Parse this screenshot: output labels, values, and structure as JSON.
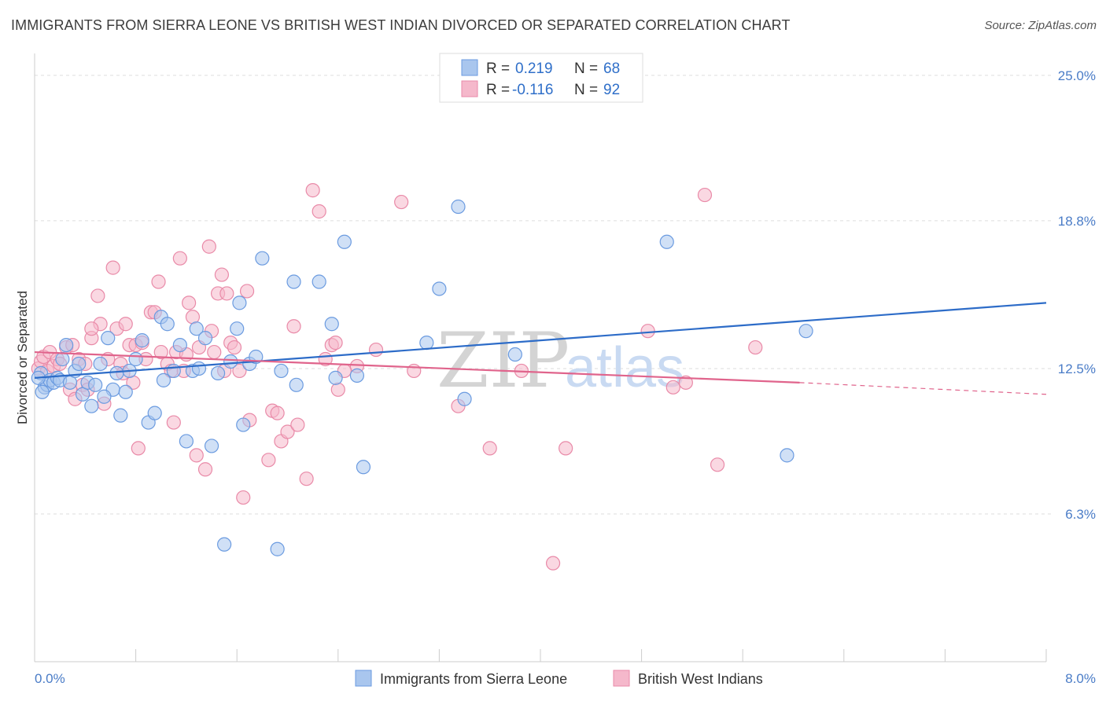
{
  "title": "IMMIGRANTS FROM SIERRA LEONE VS BRITISH WEST INDIAN DIVORCED OR SEPARATED CORRELATION CHART",
  "source": "Source: ZipAtlas.com",
  "watermark": {
    "zip": "ZIP",
    "atlas": "atlas"
  },
  "colors": {
    "blue_fill": "#a9c6ee",
    "blue_stroke": "#6b9be0",
    "blue_line": "#2d6cc8",
    "pink_fill": "#f5b8cb",
    "pink_stroke": "#e98aa8",
    "pink_line": "#e0648c",
    "tick_text": "#4a7cc7",
    "grid": "#dddddd"
  },
  "legend": {
    "rows": [
      {
        "r_label": "R =",
        "r_value": "0.219",
        "n_label": "N =",
        "n_value": "68"
      },
      {
        "r_label": "R =",
        "r_value": "-0.116",
        "n_label": "N =",
        "n_value": "92"
      }
    ]
  },
  "chart_data": {
    "type": "scatter",
    "xlabel": "",
    "ylabel": "Divorced or Separated",
    "xlim": [
      0,
      8
    ],
    "ylim": [
      0,
      25.8
    ],
    "x_tick_labels": [
      "0.0%",
      "8.0%"
    ],
    "y_ticks": [
      {
        "value": 6.3,
        "label": "6.3%"
      },
      {
        "value": 12.5,
        "label": "12.5%"
      },
      {
        "value": 18.8,
        "label": "18.8%"
      },
      {
        "value": 25.0,
        "label": "25.0%"
      }
    ],
    "grid": "horizontal dashed",
    "series": [
      {
        "name": "Immigrants from Sierra Leone",
        "color": "#a9c6ee",
        "trend": {
          "x": [
            0,
            8
          ],
          "y": [
            12.1,
            15.3
          ]
        },
        "points": [
          [
            0.05,
            12.3
          ],
          [
            0.08,
            11.7
          ],
          [
            0.1,
            11.8
          ],
          [
            0.12,
            12.0
          ],
          [
            0.15,
            11.9
          ],
          [
            0.18,
            12.1
          ],
          [
            0.2,
            12.0
          ],
          [
            0.25,
            13.5
          ],
          [
            0.28,
            11.9
          ],
          [
            0.32,
            12.4
          ],
          [
            0.35,
            12.7
          ],
          [
            0.38,
            11.4
          ],
          [
            0.42,
            11.9
          ],
          [
            0.45,
            10.9
          ],
          [
            0.48,
            11.8
          ],
          [
            0.52,
            12.7
          ],
          [
            0.58,
            13.8
          ],
          [
            0.62,
            11.6
          ],
          [
            0.65,
            12.3
          ],
          [
            0.68,
            10.5
          ],
          [
            0.72,
            11.5
          ],
          [
            0.75,
            12.4
          ],
          [
            0.8,
            12.9
          ],
          [
            0.85,
            13.7
          ],
          [
            0.9,
            10.2
          ],
          [
            0.95,
            10.6
          ],
          [
            1.0,
            14.7
          ],
          [
            1.02,
            12.0
          ],
          [
            1.05,
            14.4
          ],
          [
            1.1,
            12.4
          ],
          [
            1.15,
            13.5
          ],
          [
            1.2,
            9.4
          ],
          [
            1.25,
            12.4
          ],
          [
            1.28,
            14.2
          ],
          [
            1.3,
            12.5
          ],
          [
            1.35,
            13.8
          ],
          [
            1.4,
            9.2
          ],
          [
            1.45,
            12.3
          ],
          [
            1.55,
            12.8
          ],
          [
            1.6,
            14.2
          ],
          [
            1.62,
            15.3
          ],
          [
            1.65,
            10.1
          ],
          [
            1.7,
            12.7
          ],
          [
            1.75,
            13.0
          ],
          [
            1.8,
            17.2
          ],
          [
            1.95,
            12.4
          ],
          [
            2.05,
            16.2
          ],
          [
            2.07,
            11.8
          ],
          [
            2.25,
            16.2
          ],
          [
            2.35,
            14.4
          ],
          [
            2.38,
            12.1
          ],
          [
            2.45,
            17.9
          ],
          [
            2.55,
            12.2
          ],
          [
            2.6,
            8.3
          ],
          [
            3.1,
            13.6
          ],
          [
            3.2,
            15.9
          ],
          [
            3.35,
            19.4
          ],
          [
            3.4,
            11.2
          ],
          [
            3.8,
            13.1
          ],
          [
            5.0,
            17.9
          ],
          [
            6.1,
            14.1
          ],
          [
            1.5,
            5.0
          ],
          [
            1.92,
            4.8
          ],
          [
            5.95,
            8.8
          ],
          [
            0.03,
            12.1
          ],
          [
            0.06,
            11.5
          ],
          [
            0.22,
            12.9
          ],
          [
            0.55,
            11.3
          ]
        ]
      },
      {
        "name": "British West Indians",
        "color": "#f5b8cb",
        "trend": {
          "x": [
            0,
            6.05
          ],
          "y": [
            13.2,
            11.9
          ],
          "dash_to": {
            "x": 8,
            "y": 11.4
          }
        },
        "points": [
          [
            0.03,
            12.5
          ],
          [
            0.05,
            12.8
          ],
          [
            0.07,
            13.0
          ],
          [
            0.1,
            12.4
          ],
          [
            0.12,
            13.2
          ],
          [
            0.15,
            12.6
          ],
          [
            0.18,
            12.9
          ],
          [
            0.2,
            12.7
          ],
          [
            0.25,
            13.4
          ],
          [
            0.28,
            11.6
          ],
          [
            0.3,
            13.5
          ],
          [
            0.32,
            11.2
          ],
          [
            0.35,
            12.9
          ],
          [
            0.38,
            11.8
          ],
          [
            0.4,
            12.7
          ],
          [
            0.42,
            11.6
          ],
          [
            0.45,
            13.8
          ],
          [
            0.5,
            15.6
          ],
          [
            0.52,
            14.4
          ],
          [
            0.55,
            11.0
          ],
          [
            0.58,
            12.9
          ],
          [
            0.62,
            16.8
          ],
          [
            0.65,
            14.2
          ],
          [
            0.68,
            12.7
          ],
          [
            0.7,
            12.3
          ],
          [
            0.72,
            14.4
          ],
          [
            0.75,
            13.5
          ],
          [
            0.78,
            11.9
          ],
          [
            0.8,
            13.5
          ],
          [
            0.82,
            9.1
          ],
          [
            0.85,
            13.6
          ],
          [
            0.88,
            12.9
          ],
          [
            0.92,
            14.9
          ],
          [
            0.95,
            14.9
          ],
          [
            0.98,
            16.2
          ],
          [
            1.0,
            13.2
          ],
          [
            1.05,
            12.7
          ],
          [
            1.08,
            12.4
          ],
          [
            1.1,
            10.2
          ],
          [
            1.12,
            13.2
          ],
          [
            1.15,
            17.2
          ],
          [
            1.18,
            12.4
          ],
          [
            1.2,
            13.1
          ],
          [
            1.22,
            15.3
          ],
          [
            1.25,
            14.7
          ],
          [
            1.28,
            8.8
          ],
          [
            1.3,
            13.4
          ],
          [
            1.35,
            8.2
          ],
          [
            1.38,
            17.7
          ],
          [
            1.4,
            14.1
          ],
          [
            1.42,
            13.2
          ],
          [
            1.45,
            15.7
          ],
          [
            1.48,
            16.5
          ],
          [
            1.5,
            12.4
          ],
          [
            1.52,
            15.7
          ],
          [
            1.55,
            13.6
          ],
          [
            1.58,
            13.4
          ],
          [
            1.62,
            12.4
          ],
          [
            1.65,
            7.0
          ],
          [
            1.68,
            15.8
          ],
          [
            1.7,
            10.3
          ],
          [
            1.85,
            8.6
          ],
          [
            1.88,
            10.7
          ],
          [
            1.92,
            10.6
          ],
          [
            1.95,
            9.4
          ],
          [
            2.0,
            9.8
          ],
          [
            2.05,
            14.3
          ],
          [
            2.08,
            10.1
          ],
          [
            2.15,
            7.8
          ],
          [
            2.2,
            20.1
          ],
          [
            2.25,
            19.2
          ],
          [
            2.3,
            12.9
          ],
          [
            2.35,
            13.5
          ],
          [
            2.38,
            13.6
          ],
          [
            2.4,
            11.6
          ],
          [
            2.45,
            12.4
          ],
          [
            2.55,
            12.6
          ],
          [
            2.7,
            13.3
          ],
          [
            2.9,
            19.6
          ],
          [
            3.0,
            12.4
          ],
          [
            3.35,
            10.9
          ],
          [
            3.6,
            9.1
          ],
          [
            3.85,
            12.4
          ],
          [
            4.2,
            9.1
          ],
          [
            4.1,
            4.2
          ],
          [
            4.85,
            14.1
          ],
          [
            5.05,
            11.7
          ],
          [
            5.15,
            11.9
          ],
          [
            5.3,
            19.9
          ],
          [
            5.4,
            8.4
          ],
          [
            5.7,
            13.4
          ],
          [
            0.45,
            14.2
          ]
        ]
      }
    ]
  },
  "bottom_legend": [
    {
      "label": "Immigrants from Sierra Leone"
    },
    {
      "label": "British West Indians"
    }
  ]
}
